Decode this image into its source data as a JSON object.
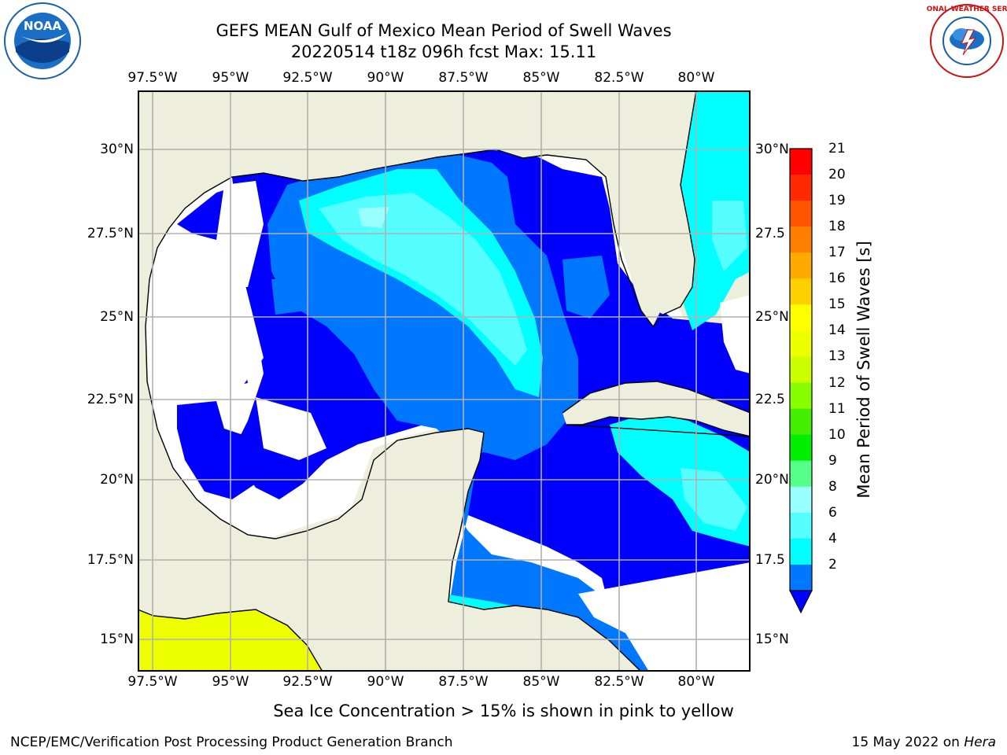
{
  "header": {
    "title_line1": "GEFS MEAN Gulf of Mexico Mean Period of Swell Waves",
    "title_line2": "20220514 t18z 096h fcst   Max: 15.11"
  },
  "logos": {
    "left": {
      "icon": "noaa-logo",
      "text": "NOAA"
    },
    "right": {
      "icon": "nws-logo",
      "text": "NATIONAL WEATHER SERVICE"
    }
  },
  "map": {
    "lon_ticks": [
      "97.5°W",
      "95°W",
      "92.5°W",
      "90°W",
      "87.5°W",
      "85°W",
      "82.5°W",
      "80°W"
    ],
    "lat_ticks_left": [
      "30°N",
      "27.5°N",
      "25°N",
      "22.5°N",
      "20°N",
      "17.5°N",
      "15°N"
    ],
    "lat_ticks_right": [
      "30°N",
      "27.5",
      "25°N",
      "22.5",
      "20°N",
      "17.5",
      "15°N"
    ],
    "colors": {
      "land": "#eeeedc",
      "no_data": "#ffffff",
      "period_2_4": "#0000ff",
      "period_4_6": "#0077ff",
      "period_6_8": "#00ffff",
      "period_8_9": "#55ffff",
      "sea_ice": "#eeff00",
      "grid": "#b0b0b0",
      "coast": "#000000"
    }
  },
  "colorbar": {
    "title": "Mean Period of Swell Waves [s]",
    "labels": [
      "21",
      "20",
      "19",
      "18",
      "17",
      "16",
      "15",
      "14",
      "13",
      "12",
      "11",
      "10",
      "9",
      "8",
      "6",
      "4",
      "2"
    ],
    "colors": [
      "#ff0000",
      "#ff2a00",
      "#ff5500",
      "#ff8000",
      "#ffaa00",
      "#ffd000",
      "#ffff00",
      "#eeff00",
      "#ccff00",
      "#88ff00",
      "#44ee00",
      "#00ee00",
      "#55ff88",
      "#99ffff",
      "#55ffff",
      "#00ffff",
      "#0077ff"
    ],
    "extend_color": "#0000ff"
  },
  "note": "Sea Ice Concentration > 15% is shown in pink to yellow",
  "footer": {
    "left": "NCEP/EMC/Verification Post Processing Product Generation Branch",
    "right_prefix": "15 May 2022 on ",
    "right_machine": "Hera"
  }
}
